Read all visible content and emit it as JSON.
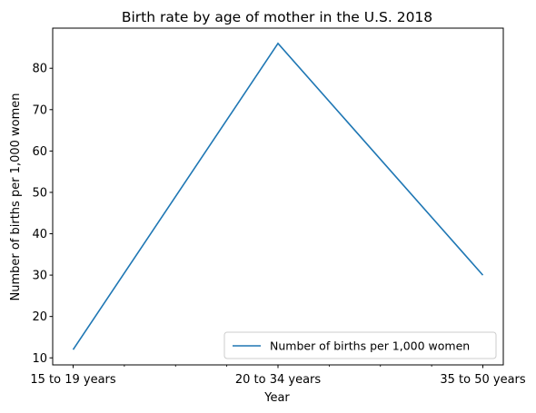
{
  "chart_data": {
    "type": "line",
    "title": "Birth rate by age of mother in the U.S. 2018",
    "xlabel": "Year",
    "ylabel": "Number of births per 1,000 women",
    "categories": [
      "15 to 19 years",
      "20 to 34 years",
      "35 to 50 years"
    ],
    "series": [
      {
        "name": "Number of births per 1,000 women",
        "values": [
          12,
          86,
          30
        ],
        "color": "#1f77b4"
      }
    ],
    "ylim": [
      8.3,
      89.7
    ],
    "yticks": [
      10,
      20,
      30,
      40,
      50,
      60,
      70,
      80
    ],
    "x_minor_ticks": true,
    "grid": false,
    "legend_position": "lower right"
  }
}
